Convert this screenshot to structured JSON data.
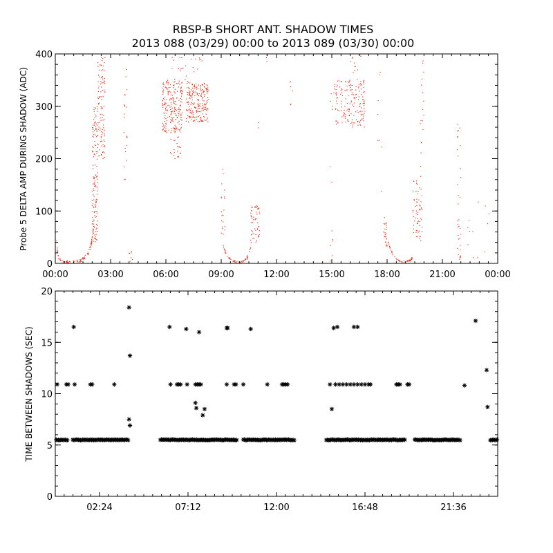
{
  "title_line1": "RBSP-B SHORT ANT. SHADOW TIMES",
  "title_line2": "2013 088 (03/29) 00:00 to 2013 089 (03/30) 00:00",
  "chart_data": [
    {
      "type": "scatter",
      "ylabel": "Probe 5 DELTA AMP DURING SHADOW (ADC)",
      "xlabel": "",
      "xlim": [
        0,
        24
      ],
      "ylim": [
        0,
        400
      ],
      "xticks": [
        0,
        3,
        6,
        9,
        12,
        15,
        18,
        21,
        24
      ],
      "xtick_labels": [
        "00:00",
        "03:00",
        "06:00",
        "09:00",
        "12:00",
        "15:00",
        "18:00",
        "21:00",
        "00:00"
      ],
      "yticks": [
        0,
        100,
        200,
        300,
        400
      ],
      "ytick_labels": [
        "0",
        "100",
        "200",
        "300",
        "400"
      ],
      "color": "#e8361e",
      "marker": "dot",
      "groups": [
        {
          "kind": "curve",
          "x": [
            0.0,
            0.1,
            0.2,
            0.4,
            0.6,
            0.8
          ],
          "y": [
            60,
            25,
            8,
            4,
            3,
            2
          ],
          "jitter": [
            0.05,
            5
          ],
          "count": 40
        },
        {
          "kind": "curve",
          "x": [
            1.0,
            1.4,
            1.8,
            2.0,
            2.2
          ],
          "y": [
            2,
            5,
            18,
            45,
            120
          ],
          "jitter": [
            0.05,
            6
          ],
          "count": 70
        },
        {
          "kind": "cloud",
          "x": [
            2.0,
            2.3
          ],
          "y": [
            40,
            300
          ],
          "count": 130
        },
        {
          "kind": "cloud",
          "x": [
            2.3,
            2.7
          ],
          "y": [
            200,
            400
          ],
          "count": 110
        },
        {
          "kind": "cloud",
          "x": [
            3.7,
            3.9
          ],
          "y": [
            150,
            380
          ],
          "count": 22
        },
        {
          "kind": "cloud",
          "x": [
            4.0,
            4.2
          ],
          "y": [
            0,
            25
          ],
          "count": 8
        },
        {
          "kind": "cloud",
          "x": [
            5.8,
            6.9
          ],
          "y": [
            250,
            350
          ],
          "count": 230
        },
        {
          "kind": "cloud",
          "x": [
            6.2,
            6.8
          ],
          "y": [
            200,
            260
          ],
          "count": 25
        },
        {
          "kind": "cloud",
          "x": [
            7.1,
            8.3
          ],
          "y": [
            270,
            345
          ],
          "count": 230
        },
        {
          "kind": "cloud",
          "x": [
            6.3,
            8.0
          ],
          "y": [
            345,
            400
          ],
          "count": 25
        },
        {
          "kind": "cloud",
          "x": [
            9.0,
            9.2
          ],
          "y": [
            30,
            180
          ],
          "count": 20
        },
        {
          "kind": "curve",
          "x": [
            9.1,
            9.3,
            9.6,
            9.9,
            10.2,
            10.4,
            10.6
          ],
          "y": [
            35,
            15,
            5,
            2,
            3,
            10,
            30
          ],
          "jitter": [
            0.04,
            4
          ],
          "count": 60
        },
        {
          "kind": "cloud",
          "x": [
            10.6,
            11.1
          ],
          "y": [
            40,
            110
          ],
          "count": 55
        },
        {
          "kind": "cloud",
          "x": [
            11.0,
            11.05
          ],
          "y": [
            250,
            270
          ],
          "count": 2
        },
        {
          "kind": "cloud",
          "x": [
            11.4,
            11.5
          ],
          "y": [
            380,
            400
          ],
          "count": 3
        },
        {
          "kind": "cloud",
          "x": [
            12.7,
            12.9
          ],
          "y": [
            300,
            390
          ],
          "count": 6
        },
        {
          "kind": "cloud",
          "x": [
            14.9,
            15.05
          ],
          "y": [
            0,
            390
          ],
          "count": 12
        },
        {
          "kind": "cloud",
          "x": [
            15.1,
            16.8
          ],
          "y": [
            260,
            350
          ],
          "count": 170
        },
        {
          "kind": "cloud",
          "x": [
            16.0,
            16.6
          ],
          "y": [
            350,
            400
          ],
          "count": 12
        },
        {
          "kind": "cloud",
          "x": [
            17.8,
            18.0
          ],
          "y": [
            30,
            90
          ],
          "count": 22
        },
        {
          "kind": "curve",
          "x": [
            17.9,
            18.2,
            18.5,
            18.8,
            19.1,
            19.4
          ],
          "y": [
            55,
            25,
            8,
            3,
            3,
            10
          ],
          "jitter": [
            0.04,
            4
          ],
          "count": 55
        },
        {
          "kind": "cloud",
          "x": [
            17.5,
            17.8
          ],
          "y": [
            120,
            380
          ],
          "count": 8
        },
        {
          "kind": "cloud",
          "x": [
            19.4,
            19.9
          ],
          "y": [
            40,
            160
          ],
          "count": 65
        },
        {
          "kind": "cloud",
          "x": [
            19.8,
            20.0
          ],
          "y": [
            160,
            400
          ],
          "count": 18
        },
        {
          "kind": "cloud",
          "x": [
            21.8,
            22.0
          ],
          "y": [
            0,
            280
          ],
          "count": 35
        },
        {
          "kind": "cloud",
          "x": [
            22.2,
            23.6
          ],
          "y": [
            0,
            120
          ],
          "count": 12
        }
      ]
    },
    {
      "type": "scatter",
      "ylabel": "TIME BETWEEN SHADOWS (SEC)",
      "xlabel": "",
      "xlim": [
        0,
        24
      ],
      "ylim": [
        0,
        20
      ],
      "xticks": [
        2.4,
        7.2,
        12.0,
        16.8,
        21.6
      ],
      "xtick_labels": [
        "02:24",
        "07:12",
        "12:00",
        "16:48",
        "21:36"
      ],
      "yticks": [
        0,
        5,
        10,
        15,
        20
      ],
      "ytick_labels": [
        "0",
        "5",
        "10",
        "15",
        "20"
      ],
      "color": "#000000",
      "marker": "asterisk",
      "bands": [
        {
          "x": [
            0.05,
            0.7
          ],
          "y": 5.5
        },
        {
          "x": [
            0.95,
            4.0
          ],
          "y": 5.5
        },
        {
          "x": [
            5.7,
            9.9
          ],
          "y": 5.5
        },
        {
          "x": [
            10.2,
            13.0
          ],
          "y": 5.5
        },
        {
          "x": [
            14.7,
            19.0
          ],
          "y": 5.5
        },
        {
          "x": [
            19.5,
            22.0
          ],
          "y": 5.5
        },
        {
          "x": [
            23.6,
            24.0
          ],
          "y": 5.5
        }
      ],
      "points": [
        [
          0.1,
          10.9
        ],
        [
          0.6,
          10.9
        ],
        [
          0.7,
          10.9
        ],
        [
          1.0,
          16.5
        ],
        [
          1.05,
          10.9
        ],
        [
          1.9,
          10.9
        ],
        [
          2.0,
          10.9
        ],
        [
          3.2,
          10.9
        ],
        [
          4.0,
          18.4
        ],
        [
          4.05,
          13.7
        ],
        [
          4.0,
          7.5
        ],
        [
          4.05,
          6.9
        ],
        [
          6.2,
          16.5
        ],
        [
          6.25,
          10.9
        ],
        [
          6.6,
          10.9
        ],
        [
          6.7,
          10.9
        ],
        [
          6.8,
          10.9
        ],
        [
          7.1,
          16.3
        ],
        [
          7.15,
          10.9
        ],
        [
          7.6,
          10.9
        ],
        [
          7.7,
          10.9
        ],
        [
          7.8,
          10.9
        ],
        [
          7.9,
          10.9
        ],
        [
          7.6,
          9.1
        ],
        [
          7.65,
          8.6
        ],
        [
          7.8,
          16.0
        ],
        [
          8.0,
          7.9
        ],
        [
          8.1,
          8.5
        ],
        [
          9.3,
          16.4
        ],
        [
          9.35,
          16.4
        ],
        [
          9.3,
          10.9
        ],
        [
          9.7,
          10.9
        ],
        [
          9.8,
          10.9
        ],
        [
          10.2,
          10.9
        ],
        [
          10.6,
          16.3
        ],
        [
          11.5,
          10.9
        ],
        [
          12.3,
          10.9
        ],
        [
          12.4,
          10.9
        ],
        [
          12.5,
          10.9
        ],
        [
          12.6,
          10.9
        ],
        [
          14.9,
          10.9
        ],
        [
          15.0,
          8.5
        ],
        [
          15.1,
          16.4
        ],
        [
          15.3,
          16.5
        ],
        [
          15.2,
          10.9
        ],
        [
          15.4,
          10.9
        ],
        [
          15.6,
          10.9
        ],
        [
          15.8,
          10.9
        ],
        [
          16.0,
          10.9
        ],
        [
          16.2,
          10.9
        ],
        [
          16.2,
          16.5
        ],
        [
          16.4,
          16.5
        ],
        [
          16.4,
          10.9
        ],
        [
          16.6,
          10.9
        ],
        [
          16.8,
          10.9
        ],
        [
          17.0,
          10.9
        ],
        [
          17.1,
          10.9
        ],
        [
          18.5,
          10.9
        ],
        [
          18.6,
          10.9
        ],
        [
          18.7,
          10.9
        ],
        [
          19.1,
          10.9
        ],
        [
          19.2,
          10.9
        ],
        [
          22.2,
          10.8
        ],
        [
          22.8,
          17.1
        ],
        [
          23.4,
          12.3
        ],
        [
          23.45,
          8.7
        ]
      ]
    }
  ]
}
